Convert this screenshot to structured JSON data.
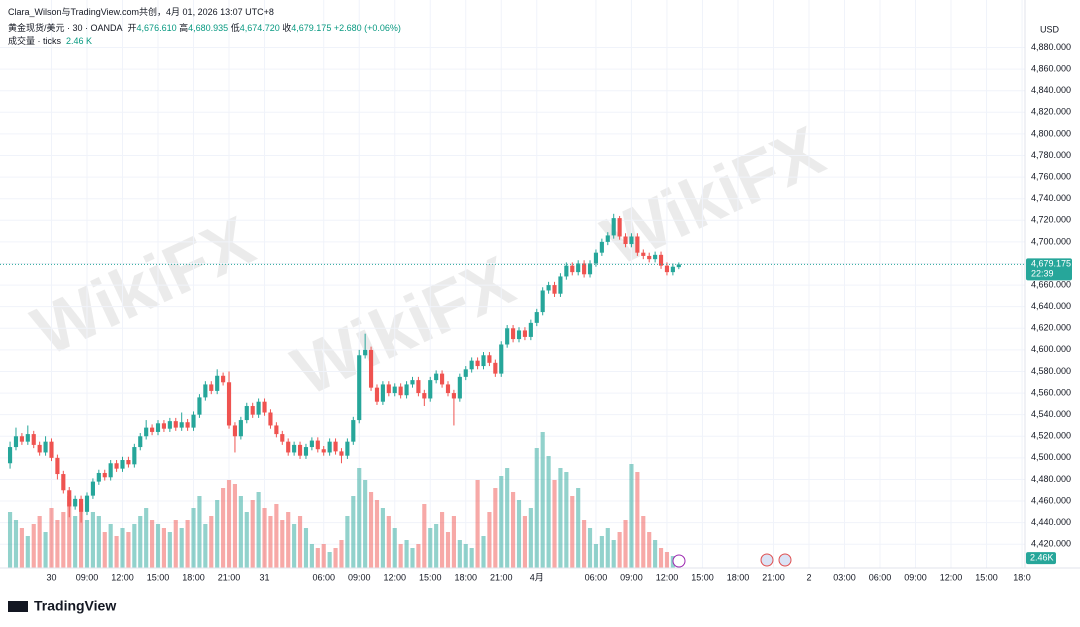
{
  "chart_data": {
    "type": "candlestick",
    "header": "Clara_Wilson与TradingView.com共创，4月 01, 2026 13:07 UTC+8",
    "symbol": "黄金现货/美元 · 30 · OANDA",
    "legend": {
      "open_label": "开",
      "open": "4,676.610",
      "high_label": "高",
      "high": "4,680.935",
      "low_label": "低",
      "low": "4,674.720",
      "close_label": "收",
      "close": "4,679.175",
      "change": "+2.680 (+0.06%)"
    },
    "volume_label": "成交量 · ticks",
    "volume_last": "2.46 K",
    "currency": "USD",
    "last_price": 4679.175,
    "last_price_label": "4,679.175",
    "countdown": "22:39",
    "volume_badge": "2.46K",
    "logo": "TradingView",
    "watermark": "WikiFX",
    "up_color": "#26a69a",
    "down_color": "#ef5350",
    "open": [
      4495,
      4510,
      4520,
      4515,
      4522,
      4512,
      4505,
      4515,
      4500,
      4485,
      4470,
      4455,
      4462,
      4450,
      4465,
      4478,
      4486,
      4482,
      4495,
      4490,
      4498,
      4494,
      4510,
      4520,
      4528,
      4524,
      4532,
      4527,
      4534,
      4528,
      4533,
      4528,
      4540,
      4556,
      4568,
      4562,
      4576,
      4570,
      4530,
      4520,
      4535,
      4548,
      4540,
      4552,
      4542,
      4530,
      4522,
      4515,
      4505,
      4512,
      4502,
      4510,
      4516,
      4508,
      4505,
      4515,
      4506,
      4502,
      4515,
      4535,
      4595,
      4600,
      4565,
      4552,
      4568,
      4560,
      4566,
      4558,
      4568,
      4572,
      4560,
      4555,
      4572,
      4578,
      4568,
      4560,
      4555,
      4575,
      4582,
      4590,
      4585,
      4595,
      4588,
      4578,
      4605,
      4620,
      4610,
      4618,
      4612,
      4625,
      4635,
      4655,
      4660,
      4652,
      4668,
      4678,
      4672,
      4680,
      4670,
      4680,
      4690,
      4700,
      4706,
      4722,
      4705,
      4698,
      4705,
      4690,
      4687,
      4684,
      4688,
      4678,
      4672,
      4676.61
    ],
    "high": [
      4515,
      4528,
      4523,
      4530,
      4525,
      4515,
      4520,
      4518,
      4503,
      4488,
      4473,
      4465,
      4465,
      4468,
      4481,
      4489,
      4489,
      4498,
      4498,
      4501,
      4501,
      4513,
      4523,
      4535,
      4531,
      4535,
      4535,
      4537,
      4537,
      4542,
      4536,
      4543,
      4559,
      4571,
      4571,
      4582,
      4579,
      4580,
      4533,
      4538,
      4551,
      4551,
      4555,
      4555,
      4545,
      4533,
      4525,
      4518,
      4515,
      4515,
      4513,
      4519,
      4519,
      4511,
      4518,
      4518,
      4509,
      4518,
      4538,
      4600,
      4615,
      4603,
      4568,
      4571,
      4571,
      4569,
      4569,
      4571,
      4575,
      4575,
      4563,
      4575,
      4581,
      4581,
      4571,
      4563,
      4578,
      4585,
      4593,
      4593,
      4598,
      4598,
      4591,
      4608,
      4623,
      4623,
      4621,
      4621,
      4628,
      4638,
      4658,
      4663,
      4663,
      4671,
      4681,
      4681,
      4683,
      4683,
      4683,
      4693,
      4703,
      4709,
      4726,
      4724,
      4708,
      4708,
      4708,
      4693,
      4690,
      4691,
      4691,
      4681,
      4680,
      4680.935
    ],
    "low": [
      4490,
      4507,
      4512,
      4512,
      4509,
      4502,
      4502,
      4497,
      4480,
      4467,
      4445,
      4452,
      4440,
      4447,
      4462,
      4475,
      4479,
      4479,
      4487,
      4487,
      4491,
      4491,
      4507,
      4517,
      4521,
      4521,
      4524,
      4524,
      4525,
      4525,
      4525,
      4525,
      4537,
      4553,
      4559,
      4559,
      4567,
      4527,
      4505,
      4517,
      4532,
      4537,
      4537,
      4539,
      4527,
      4519,
      4512,
      4502,
      4502,
      4499,
      4499,
      4507,
      4505,
      4502,
      4502,
      4503,
      4495,
      4499,
      4512,
      4532,
      4592,
      4562,
      4549,
      4549,
      4557,
      4557,
      4555,
      4555,
      4565,
      4557,
      4548,
      4552,
      4569,
      4565,
      4557,
      4530,
      4552,
      4572,
      4579,
      4582,
      4582,
      4585,
      4575,
      4575,
      4602,
      4607,
      4607,
      4609,
      4609,
      4622,
      4632,
      4652,
      4649,
      4649,
      4665,
      4669,
      4669,
      4667,
      4667,
      4677,
      4687,
      4697,
      4703,
      4702,
      4695,
      4695,
      4687,
      4684,
      4681,
      4681,
      4675,
      4669,
      4669,
      4674.72
    ],
    "close": [
      4510,
      4520,
      4515,
      4522,
      4512,
      4505,
      4515,
      4500,
      4485,
      4470,
      4455,
      4462,
      4450,
      4465,
      4478,
      4486,
      4482,
      4495,
      4490,
      4498,
      4494,
      4510,
      4520,
      4528,
      4524,
      4532,
      4527,
      4534,
      4528,
      4533,
      4528,
      4540,
      4556,
      4568,
      4562,
      4576,
      4570,
      4530,
      4520,
      4535,
      4548,
      4540,
      4552,
      4542,
      4530,
      4522,
      4515,
      4505,
      4512,
      4502,
      4510,
      4516,
      4508,
      4505,
      4515,
      4506,
      4502,
      4515,
      4535,
      4595,
      4600,
      4565,
      4552,
      4568,
      4560,
      4566,
      4558,
      4568,
      4572,
      4560,
      4555,
      4572,
      4578,
      4568,
      4560,
      4555,
      4575,
      4582,
      4590,
      4585,
      4595,
      4588,
      4578,
      4605,
      4620,
      4610,
      4618,
      4612,
      4625,
      4635,
      4655,
      4660,
      4652,
      4668,
      4678,
      4672,
      4680,
      4670,
      4680,
      4690,
      4700,
      4706,
      4722,
      4705,
      4698,
      4705,
      4690,
      4687,
      4684,
      4688,
      4678,
      4672,
      4677,
      4679.175
    ],
    "volume": [
      14,
      12,
      10,
      8,
      11,
      13,
      9,
      15,
      12,
      14,
      18,
      13,
      16,
      12,
      14,
      13,
      9,
      11,
      8,
      10,
      9,
      11,
      13,
      15,
      12,
      11,
      10,
      9,
      12,
      10,
      12,
      15,
      18,
      11,
      13,
      17,
      20,
      22,
      21,
      18,
      14,
      17,
      19,
      15,
      13,
      16,
      12,
      14,
      11,
      13,
      10,
      6,
      5,
      6,
      4,
      5,
      7,
      13,
      18,
      25,
      22,
      19,
      17,
      15,
      13,
      10,
      6,
      7,
      5,
      6,
      16,
      10,
      11,
      14,
      9,
      13,
      7,
      6,
      5,
      22,
      8,
      14,
      20,
      23,
      25,
      19,
      17,
      13,
      15,
      30,
      34,
      28,
      22,
      25,
      24,
      18,
      20,
      12,
      10,
      6,
      8,
      10,
      7,
      9,
      12,
      26,
      24,
      13,
      9,
      7,
      5,
      4,
      3,
      2.46
    ],
    "volume_ylim": [
      0,
      40
    ],
    "ylim": [
      4398,
      4924
    ],
    "yticks": [
      {
        "value": 4420,
        "label": "4,420.000"
      },
      {
        "value": 4440,
        "label": "4,440.000"
      },
      {
        "value": 4460,
        "label": "4,460.000"
      },
      {
        "value": 4480,
        "label": "4,480.000"
      },
      {
        "value": 4500,
        "label": "4,500.000"
      },
      {
        "value": 4520,
        "label": "4,520.000"
      },
      {
        "value": 4540,
        "label": "4,540.000"
      },
      {
        "value": 4560,
        "label": "4,560.000"
      },
      {
        "value": 4580,
        "label": "4,580.000"
      },
      {
        "value": 4600,
        "label": "4,600.000"
      },
      {
        "value": 4620,
        "label": "4,620.000"
      },
      {
        "value": 4640,
        "label": "4,640.000"
      },
      {
        "value": 4660,
        "label": "4,660.000"
      },
      {
        "value": 4680,
        "label": "4,680.000"
      },
      {
        "value": 4700,
        "label": "4,700.000"
      },
      {
        "value": 4720,
        "label": "4,720.000"
      },
      {
        "value": 4740,
        "label": "4,740.000"
      },
      {
        "value": 4760,
        "label": "4,760.000"
      },
      {
        "value": 4780,
        "label": "4,780.000"
      },
      {
        "value": 4800,
        "label": "4,800.000"
      },
      {
        "value": 4820,
        "label": "4,820.000"
      },
      {
        "value": 4840,
        "label": "4,840.000"
      },
      {
        "value": 4860,
        "label": "4,860.000"
      },
      {
        "value": 4880,
        "label": "4,880.000"
      }
    ],
    "xlim": [
      -1.7,
      171.5
    ],
    "xticks": [
      {
        "value": 7,
        "label": "30"
      },
      {
        "value": 13,
        "label": "09:00"
      },
      {
        "value": 19,
        "label": "12:00"
      },
      {
        "value": 25,
        "label": "15:00"
      },
      {
        "value": 31,
        "label": "18:00"
      },
      {
        "value": 37,
        "label": "21:00"
      },
      {
        "value": 43,
        "label": "31"
      },
      {
        "value": 53,
        "label": "06:00"
      },
      {
        "value": 59,
        "label": "09:00"
      },
      {
        "value": 65,
        "label": "12:00"
      },
      {
        "value": 71,
        "label": "15:00"
      },
      {
        "value": 77,
        "label": "18:00"
      },
      {
        "value": 83,
        "label": "21:00"
      },
      {
        "value": 89,
        "label": "4月"
      },
      {
        "value": 99,
        "label": "06:00"
      },
      {
        "value": 105,
        "label": "09:00"
      },
      {
        "value": 111,
        "label": "12:00"
      },
      {
        "value": 117,
        "label": "15:00"
      },
      {
        "value": 123,
        "label": "18:00"
      },
      {
        "value": 129,
        "label": "21:00"
      },
      {
        "value": 135,
        "label": "2"
      },
      {
        "value": 141,
        "label": "03:00"
      },
      {
        "value": 147,
        "label": "06:00"
      },
      {
        "value": 153,
        "label": "09:00"
      },
      {
        "value": 159,
        "label": "12:00"
      },
      {
        "value": 165,
        "label": "15:00"
      },
      {
        "value": 171,
        "label": "18:0"
      }
    ],
    "grid": true
  }
}
